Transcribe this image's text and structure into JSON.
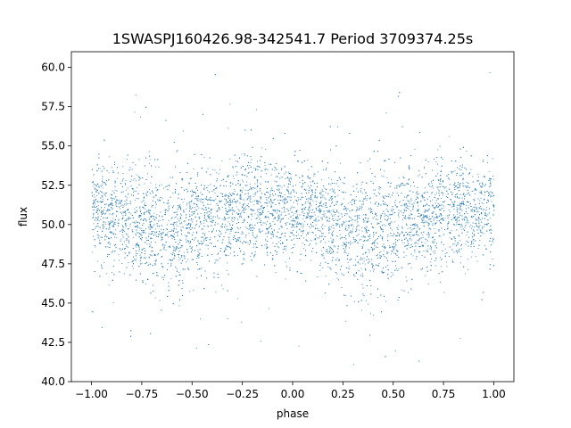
{
  "chart_data": {
    "type": "scatter",
    "title": "1SWASPJ160426.98-342541.7 Period 3709374.25s",
    "xlabel": "phase",
    "ylabel": "flux",
    "xlim": [
      -1.1,
      1.1
    ],
    "ylim": [
      40,
      61
    ],
    "xticks": [
      -1.0,
      -0.75,
      -0.5,
      -0.25,
      0.0,
      0.25,
      0.5,
      0.75,
      1.0
    ],
    "xtick_labels": [
      "−1.00",
      "−0.75",
      "−0.50",
      "−0.25",
      "0.00",
      "0.25",
      "0.50",
      "0.75",
      "1.00"
    ],
    "yticks": [
      40.0,
      42.5,
      45.0,
      47.5,
      50.0,
      52.5,
      55.0,
      57.5,
      60.0
    ],
    "ytick_labels": [
      "40.0",
      "42.5",
      "45.0",
      "47.5",
      "50.0",
      "52.5",
      "55.0",
      "57.5",
      "60.0"
    ],
    "grid": false,
    "marker_color": "#1f77b4",
    "flux_profile": {
      "description_of_data": "approximate mean flux vs phase, symmetric periodic light curve over two cycles",
      "phase": [
        -1.0,
        -0.9,
        -0.8,
        -0.7,
        -0.6,
        -0.5,
        -0.4,
        -0.3,
        -0.2,
        -0.1,
        0.0,
        0.1,
        0.2,
        0.3,
        0.4,
        0.5,
        0.6,
        0.7,
        0.8,
        0.9,
        1.0
      ],
      "mean_flux": [
        51.0,
        50.6,
        50.2,
        49.8,
        49.5,
        49.9,
        50.2,
        50.6,
        51.0,
        50.8,
        51.0,
        50.6,
        50.2,
        49.8,
        49.5,
        49.9,
        50.2,
        50.6,
        51.0,
        50.8,
        51.0
      ],
      "scatter_sigma": [
        1.5,
        1.6,
        1.7,
        1.9,
        2.0,
        1.9,
        1.8,
        1.7,
        1.6,
        1.6,
        1.5,
        1.6,
        1.7,
        1.9,
        2.0,
        1.9,
        1.8,
        1.7,
        1.6,
        1.6,
        1.5
      ],
      "flux_clip": [
        41.0,
        60.2
      ]
    }
  }
}
